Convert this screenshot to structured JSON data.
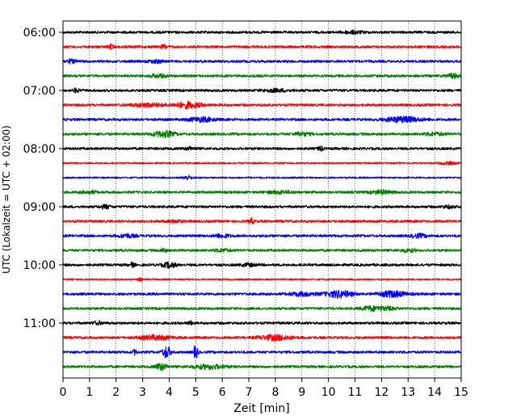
{
  "chart_data": {
    "type": "line",
    "subtype": "helicorder-seismogram",
    "title": "",
    "xlabel": "Zeit  [min]",
    "ylabel": "UTC (Lokalzeit = UTC + 02:00)",
    "xlim": [
      0,
      15
    ],
    "x_ticks": [
      "0",
      "1",
      "2",
      "3",
      "4",
      "5",
      "6",
      "7",
      "8",
      "9",
      "10",
      "11",
      "12",
      "13",
      "14",
      "15"
    ],
    "y_tick_labels": [
      "06:00",
      "07:00",
      "08:00",
      "09:00",
      "10:00",
      "11:00"
    ],
    "grid": "vertical dotted lines at each minute",
    "trace_colors": [
      "#000000",
      "#ff0000",
      "#0000ff",
      "#008000"
    ],
    "row_interval_min": 15,
    "first_row": "06:00",
    "series": [
      {
        "start": "06:00",
        "color": "#000000",
        "noise": 3,
        "events": [
          {
            "t": 10.9,
            "a": 3,
            "w": 0.4
          }
        ]
      },
      {
        "start": "06:15",
        "color": "#ff0000",
        "noise": 3,
        "events": [
          {
            "t": 1.8,
            "a": 5,
            "w": 0.1
          },
          {
            "t": 3.8,
            "a": 5,
            "w": 0.1
          }
        ]
      },
      {
        "start": "06:30",
        "color": "#0000ff",
        "noise": 3,
        "events": [
          {
            "t": 0.3,
            "a": 4,
            "w": 0.2
          },
          {
            "t": 3.5,
            "a": 3,
            "w": 0.3
          }
        ]
      },
      {
        "start": "06:45",
        "color": "#008000",
        "noise": 3,
        "events": [
          {
            "t": 3.6,
            "a": 4,
            "w": 0.3
          },
          {
            "t": 14.7,
            "a": 5,
            "w": 0.2
          }
        ]
      },
      {
        "start": "07:00",
        "color": "#000000",
        "noise": 3,
        "events": [
          {
            "t": 0.5,
            "a": 5,
            "w": 0.1
          },
          {
            "t": 8.0,
            "a": 3,
            "w": 0.5
          }
        ]
      },
      {
        "start": "07:15",
        "color": "#ff0000",
        "noise": 3,
        "events": [
          {
            "t": 3.2,
            "a": 4,
            "w": 0.6
          },
          {
            "t": 4.7,
            "a": 7,
            "w": 0.5
          }
        ]
      },
      {
        "start": "07:30",
        "color": "#0000ff",
        "noise": 3,
        "events": [
          {
            "t": 5.2,
            "a": 5,
            "w": 0.5
          },
          {
            "t": 12.8,
            "a": 6,
            "w": 0.7
          }
        ]
      },
      {
        "start": "07:45",
        "color": "#008000",
        "noise": 3,
        "events": [
          {
            "t": 3.8,
            "a": 7,
            "w": 0.4
          },
          {
            "t": 9.0,
            "a": 4,
            "w": 0.3
          },
          {
            "t": 14.0,
            "a": 3,
            "w": 0.4
          }
        ]
      },
      {
        "start": "08:00",
        "color": "#000000",
        "noise": 3,
        "events": [
          {
            "t": 9.7,
            "a": 5,
            "w": 0.1
          },
          {
            "t": 4.8,
            "a": 3,
            "w": 0.2
          }
        ]
      },
      {
        "start": "08:15",
        "color": "#ff0000",
        "noise": 2,
        "events": [
          {
            "t": 14.5,
            "a": 3,
            "w": 0.3
          }
        ]
      },
      {
        "start": "08:30",
        "color": "#0000ff",
        "noise": 2,
        "events": [
          {
            "t": 4.7,
            "a": 5,
            "w": 0.15
          }
        ]
      },
      {
        "start": "08:45",
        "color": "#008000",
        "noise": 3,
        "events": [
          {
            "t": 1.0,
            "a": 3,
            "w": 0.3
          },
          {
            "t": 8.2,
            "a": 3,
            "w": 0.5
          },
          {
            "t": 12.0,
            "a": 4,
            "w": 0.4
          }
        ]
      },
      {
        "start": "09:00",
        "color": "#000000",
        "noise": 3,
        "events": [
          {
            "t": 1.6,
            "a": 4,
            "w": 0.2
          },
          {
            "t": 14.5,
            "a": 3,
            "w": 0.2
          }
        ]
      },
      {
        "start": "09:15",
        "color": "#ff0000",
        "noise": 3,
        "events": [
          {
            "t": 7.1,
            "a": 6,
            "w": 0.1
          },
          {
            "t": 4.2,
            "a": 3,
            "w": 0.3
          }
        ]
      },
      {
        "start": "09:30",
        "color": "#0000ff",
        "noise": 3,
        "events": [
          {
            "t": 2.4,
            "a": 4,
            "w": 0.3
          },
          {
            "t": 6.0,
            "a": 4,
            "w": 0.3
          },
          {
            "t": 13.4,
            "a": 4,
            "w": 0.3
          }
        ]
      },
      {
        "start": "09:45",
        "color": "#008000",
        "noise": 3,
        "events": [
          {
            "t": 3.8,
            "a": 5,
            "w": 0.1
          },
          {
            "t": 6.0,
            "a": 3,
            "w": 0.3
          },
          {
            "t": 13.0,
            "a": 3,
            "w": 0.3
          }
        ]
      },
      {
        "start": "10:00",
        "color": "#000000",
        "noise": 3,
        "events": [
          {
            "t": 2.6,
            "a": 5,
            "w": 0.1
          },
          {
            "t": 4.0,
            "a": 6,
            "w": 0.25
          },
          {
            "t": 7.0,
            "a": 3,
            "w": 0.3
          }
        ]
      },
      {
        "start": "10:15",
        "color": "#ff0000",
        "noise": 2,
        "events": [
          {
            "t": 2.9,
            "a": 5,
            "w": 0.08
          }
        ]
      },
      {
        "start": "10:30",
        "color": "#0000ff",
        "noise": 3,
        "events": [
          {
            "t": 9.0,
            "a": 4,
            "w": 0.5
          },
          {
            "t": 10.4,
            "a": 8,
            "w": 0.5
          },
          {
            "t": 12.4,
            "a": 7,
            "w": 0.5
          }
        ]
      },
      {
        "start": "10:45",
        "color": "#008000",
        "noise": 3,
        "events": [
          {
            "t": 11.6,
            "a": 5,
            "w": 0.35
          },
          {
            "t": 12.2,
            "a": 4,
            "w": 0.3
          }
        ]
      },
      {
        "start": "11:00",
        "color": "#000000",
        "noise": 3,
        "events": [
          {
            "t": 4.8,
            "a": 4,
            "w": 0.1
          },
          {
            "t": 1.3,
            "a": 3,
            "w": 0.2
          }
        ]
      },
      {
        "start": "11:15",
        "color": "#ff0000",
        "noise": 3,
        "events": [
          {
            "t": 3.5,
            "a": 5,
            "w": 0.6
          },
          {
            "t": 8.0,
            "a": 6,
            "w": 0.6
          }
        ]
      },
      {
        "start": "11:30",
        "color": "#0000ff",
        "noise": 3,
        "events": [
          {
            "t": 2.7,
            "a": 6,
            "w": 0.08
          },
          {
            "t": 3.9,
            "a": 14,
            "w": 0.15
          },
          {
            "t": 5.0,
            "a": 16,
            "w": 0.08
          }
        ]
      },
      {
        "start": "11:45",
        "color": "#008000",
        "noise": 3,
        "events": [
          {
            "t": 3.7,
            "a": 8,
            "w": 0.2
          },
          {
            "t": 5.5,
            "a": 5,
            "w": 0.6
          }
        ]
      }
    ]
  }
}
